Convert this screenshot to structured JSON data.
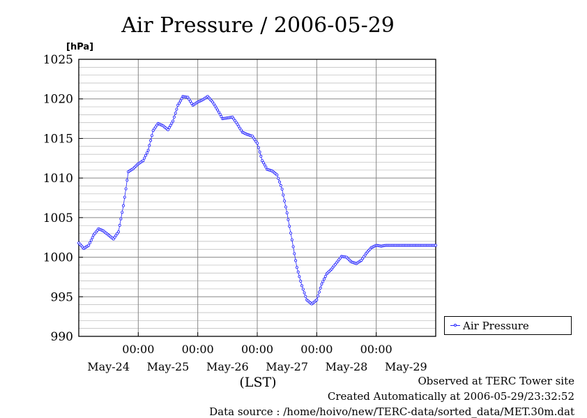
{
  "chart_data": {
    "type": "line",
    "title": "Air Pressure / 2006-05-29",
    "yunit": "[hPa]",
    "xlabel": "(LST)",
    "ylim": [
      990,
      1025
    ],
    "yticks": [
      990,
      995,
      1000,
      1005,
      1010,
      1015,
      1020,
      1025
    ],
    "xlim": [
      0,
      144
    ],
    "time_ticks": [
      {
        "x": 24,
        "label": "00:00"
      },
      {
        "x": 48,
        "label": "00:00"
      },
      {
        "x": 72,
        "label": "00:00"
      },
      {
        "x": 96,
        "label": "00:00"
      },
      {
        "x": 120,
        "label": "00:00"
      }
    ],
    "day_labels": [
      {
        "x": 12,
        "label": "May-24"
      },
      {
        "x": 36,
        "label": "May-25"
      },
      {
        "x": 60,
        "label": "May-26"
      },
      {
        "x": 84,
        "label": "May-27"
      },
      {
        "x": 108,
        "label": "May-28"
      },
      {
        "x": 132,
        "label": "May-29"
      }
    ],
    "grid": true,
    "legend": "right",
    "series": [
      {
        "name": "Air Pressure",
        "color": "#2222ff",
        "x": [
          0,
          2,
          4,
          6,
          8,
          10,
          12,
          14,
          16,
          18,
          20,
          22,
          24,
          26,
          28,
          30,
          32,
          34,
          36,
          38,
          40,
          42,
          44,
          46,
          48,
          50,
          52,
          54,
          56,
          58,
          60,
          62,
          64,
          66,
          68,
          70,
          72,
          74,
          76,
          78,
          80,
          82,
          84,
          86,
          88,
          90,
          92,
          94,
          96,
          98,
          100,
          102,
          104,
          106,
          108,
          110,
          112,
          114,
          116,
          118,
          120,
          122,
          124,
          126,
          128,
          130,
          132,
          134,
          136,
          138,
          140,
          142,
          144
        ],
        "values": [
          1001.8,
          1001.1,
          1001.5,
          1002.8,
          1003.6,
          1003.3,
          1002.8,
          1002.3,
          1003.2,
          1006.5,
          1010.8,
          1011.2,
          1011.8,
          1012.2,
          1013.5,
          1016.0,
          1016.9,
          1016.6,
          1016.1,
          1017.2,
          1019.2,
          1020.3,
          1020.2,
          1019.2,
          1019.6,
          1019.9,
          1020.3,
          1019.6,
          1018.6,
          1017.5,
          1017.6,
          1017.7,
          1016.8,
          1015.8,
          1015.5,
          1015.3,
          1014.4,
          1012.2,
          1011.1,
          1010.9,
          1010.4,
          1008.6,
          1005.6,
          1002.2,
          998.7,
          996.4,
          994.6,
          994.1,
          994.6,
          996.6,
          997.9,
          998.5,
          999.3,
          1000.1,
          1000.0,
          999.4,
          999.2,
          999.6,
          1000.5,
          1001.2,
          1001.5,
          1001.4,
          1001.5,
          1001.5,
          1001.5,
          1001.5,
          1001.5,
          1001.5,
          1001.5,
          1001.5,
          1001.5,
          1001.5,
          1001.5
        ]
      }
    ]
  },
  "footer": {
    "site": "Observed at TERC Tower site",
    "created": "Created Automatically at 2006-05-29/23:32:52",
    "source": "Data source : /home/hoivo/new/TERC-data/sorted_data/MET.30m.dat"
  }
}
